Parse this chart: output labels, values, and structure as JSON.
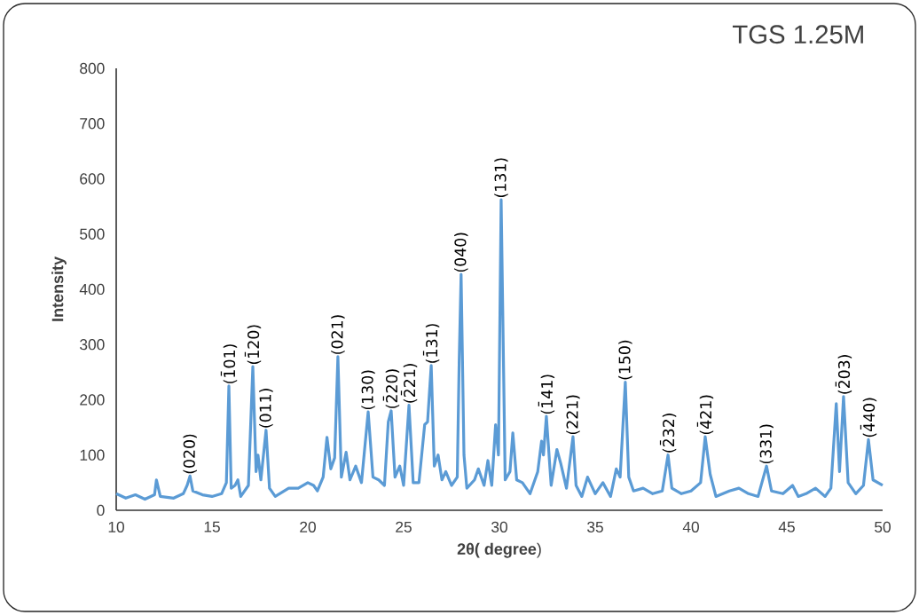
{
  "chart_data": {
    "type": "line",
    "title": "TGS 1.25M",
    "xlabel": "**2θ( degree**)",
    "ylabel": "Intensity",
    "xlim": [
      10,
      50
    ],
    "xticks": [
      10,
      15,
      20,
      25,
      30,
      35,
      40,
      45,
      50
    ],
    "ylim": [
      0,
      800
    ],
    "yticks": [
      0,
      100,
      200,
      300,
      400,
      500,
      600,
      700,
      800
    ],
    "x": [
      10,
      10.5,
      11,
      11.5,
      12,
      12.1,
      12.3,
      13,
      13.5,
      13.7,
      13.85,
      14,
      14.5,
      15,
      15.5,
      15.75,
      15.88,
      16.0,
      16.2,
      16.35,
      16.5,
      16.9,
      17.13,
      17.3,
      17.4,
      17.55,
      17.82,
      18.0,
      18.3,
      19,
      19.5,
      20,
      20.3,
      20.5,
      20.8,
      21.0,
      21.2,
      21.4,
      21.57,
      21.75,
      22.0,
      22.2,
      22.5,
      22.8,
      23.15,
      23.4,
      23.7,
      24.0,
      24.2,
      24.35,
      24.55,
      24.8,
      25.0,
      25.28,
      25.5,
      25.8,
      26.1,
      26.25,
      26.44,
      26.6,
      26.8,
      27.0,
      27.2,
      27.5,
      27.8,
      27.9,
      28.0,
      28.15,
      28.3,
      28.7,
      28.9,
      29.2,
      29.4,
      29.6,
      29.8,
      29.95,
      30.09,
      30.3,
      30.55,
      30.7,
      30.9,
      31.2,
      31.6,
      32.0,
      32.2,
      32.3,
      32.45,
      32.7,
      33.0,
      33.2,
      33.5,
      33.84,
      34.0,
      34.3,
      34.6,
      35.0,
      35.4,
      35.8,
      36.1,
      36.3,
      36.57,
      36.75,
      37.0,
      37.5,
      38.0,
      38.5,
      38.8,
      39.0,
      39.5,
      40.0,
      40.5,
      40.74,
      41.0,
      41.3,
      42.0,
      42.5,
      43.0,
      43.5,
      43.94,
      44.2,
      44.8,
      45.3,
      45.6,
      46.0,
      46.5,
      47.0,
      47.3,
      47.58,
      47.75,
      47.96,
      48.2,
      48.6,
      49.0,
      49.26,
      49.5,
      50
    ],
    "series": [
      {
        "color": "#5b9bd5",
        "values": [
          30,
          22,
          28,
          20,
          28,
          55,
          25,
          22,
          30,
          45,
          62,
          35,
          28,
          25,
          30,
          50,
          225,
          40,
          45,
          55,
          25,
          45,
          260,
          70,
          100,
          55,
          145,
          40,
          25,
          40,
          40,
          50,
          45,
          35,
          60,
          132,
          75,
          95,
          278,
          60,
          105,
          55,
          80,
          50,
          178,
          60,
          55,
          45,
          160,
          180,
          60,
          80,
          45,
          190,
          50,
          50,
          155,
          160,
          262,
          80,
          100,
          55,
          70,
          45,
          60,
          270,
          427,
          100,
          40,
          55,
          75,
          45,
          90,
          45,
          155,
          100,
          562,
          55,
          70,
          140,
          55,
          50,
          30,
          70,
          125,
          100,
          170,
          45,
          110,
          85,
          40,
          133,
          45,
          25,
          60,
          30,
          50,
          25,
          75,
          60,
          232,
          60,
          35,
          40,
          30,
          35,
          100,
          40,
          30,
          35,
          50,
          133,
          65,
          25,
          35,
          40,
          30,
          25,
          80,
          35,
          30,
          45,
          25,
          30,
          40,
          25,
          40,
          193,
          70,
          206,
          50,
          30,
          45,
          128,
          55,
          45
        ]
      }
    ],
    "annotations": [
      {
        "text": "(020)",
        "x": 13.85,
        "y": 62
      },
      {
        "text": "(1̄01)",
        "x": 15.88,
        "y": 225
      },
      {
        "text": "(1̄20)",
        "x": 17.13,
        "y": 260
      },
      {
        "text": "(011)",
        "x": 17.82,
        "y": 145
      },
      {
        "text": "(021)",
        "x": 21.57,
        "y": 278
      },
      {
        "text": "(130)",
        "x": 23.15,
        "y": 178
      },
      {
        "text": "(2̄20)",
        "x": 24.35,
        "y": 180
      },
      {
        "text": "(2̄21)",
        "x": 25.28,
        "y": 190
      },
      {
        "text": "(1̄31)",
        "x": 26.44,
        "y": 262
      },
      {
        "text": "(040)",
        "x": 28.0,
        "y": 427
      },
      {
        "text": "(131)",
        "x": 30.09,
        "y": 562
      },
      {
        "text": "(1̄41)",
        "x": 32.45,
        "y": 170
      },
      {
        "text": "(221)",
        "x": 33.84,
        "y": 133
      },
      {
        "text": "(150)",
        "x": 36.57,
        "y": 232
      },
      {
        "text": "(2̄32)",
        "x": 38.8,
        "y": 100
      },
      {
        "text": "(4̄21)",
        "x": 40.74,
        "y": 133
      },
      {
        "text": "(331)",
        "x": 43.94,
        "y": 80
      },
      {
        "text": "(2̄03)",
        "x": 47.96,
        "y": 206
      },
      {
        "text": "(4̄40)",
        "x": 49.26,
        "y": 128
      }
    ]
  }
}
